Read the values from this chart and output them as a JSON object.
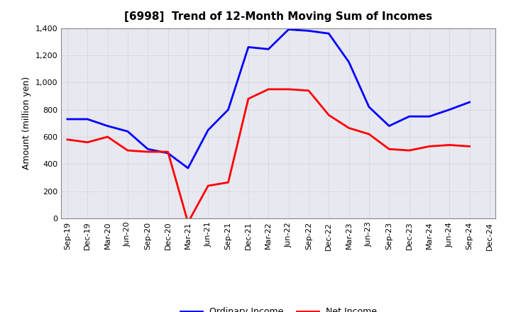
{
  "title": "[6998]  Trend of 12-Month Moving Sum of Incomes",
  "ylabel": "Amount (million yen)",
  "x_labels": [
    "Sep-19",
    "Dec-19",
    "Mar-20",
    "Jun-20",
    "Sep-20",
    "Dec-20",
    "Mar-21",
    "Jun-21",
    "Sep-21",
    "Dec-21",
    "Mar-22",
    "Jun-22",
    "Sep-22",
    "Dec-22",
    "Mar-23",
    "Jun-23",
    "Sep-23",
    "Dec-23",
    "Mar-24",
    "Jun-24",
    "Sep-24",
    "Dec-24"
  ],
  "ordinary_income": [
    730,
    730,
    680,
    640,
    510,
    480,
    370,
    650,
    800,
    1260,
    1245,
    1390,
    1380,
    1360,
    1150,
    820,
    680,
    750,
    750,
    800,
    855,
    null
  ],
  "net_income": [
    580,
    560,
    600,
    500,
    490,
    490,
    -30,
    240,
    265,
    880,
    950,
    950,
    940,
    760,
    665,
    620,
    510,
    500,
    530,
    540,
    530,
    null
  ],
  "ordinary_color": "#0000FF",
  "net_color": "#FF0000",
  "ylim": [
    0,
    1400
  ],
  "yticks": [
    0,
    200,
    400,
    600,
    800,
    1000,
    1200,
    1400
  ],
  "plot_bg_color": "#E8E8F0",
  "fig_bg_color": "#FFFFFF",
  "grid_color": "#BBBBCC",
  "legend_labels": [
    "Ordinary Income",
    "Net Income"
  ],
  "title_fontsize": 11,
  "ylabel_fontsize": 9,
  "tick_fontsize": 8,
  "legend_fontsize": 9,
  "line_width": 2.0
}
